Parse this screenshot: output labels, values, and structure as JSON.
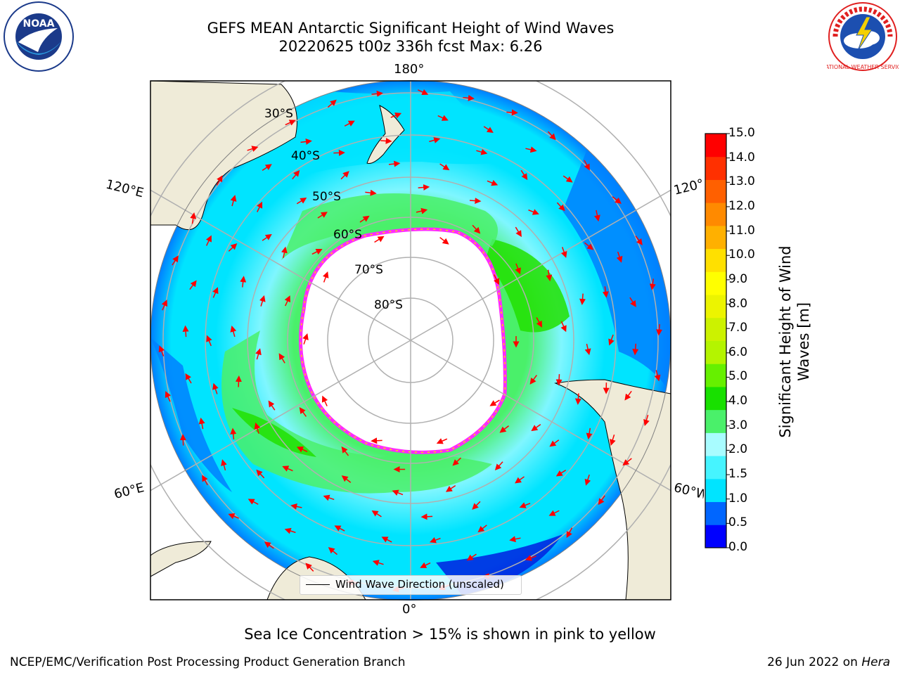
{
  "title": {
    "line1": "GEFS MEAN Antarctic Significant Height of Wind Waves",
    "line2": "20220625 t00z 336h fcst   Max: 6.26"
  },
  "map": {
    "projection": "south-polar-stereographic",
    "longitude_labels": {
      "top": "180°",
      "bottom": "0°",
      "upper_left": "120°E",
      "upper_right": "120°W",
      "lower_left": "60°E",
      "lower_right": "60°W"
    },
    "latitude_labels": [
      "30°S",
      "40°S",
      "50°S",
      "60°S",
      "70°S",
      "80°S"
    ],
    "ocean_field_colors": [
      "#00e4ff",
      "#7ff6ff",
      "#4af06a",
      "#22e000",
      "#0080ff",
      "#0020e0"
    ],
    "land_color": "#efebd8",
    "sea_ice_edge_color": "#ff2aff",
    "vector_color": "#ff0000"
  },
  "legend": {
    "label": "Wind Wave Direction (unscaled)"
  },
  "colorbar": {
    "label_line1": "Significant Height of Wind",
    "label_line2": "Waves [m]",
    "ticks": [
      "15.0",
      "14.0",
      "13.0",
      "12.0",
      "11.0",
      "10.0",
      "9.0",
      "8.0",
      "7.0",
      "6.0",
      "5.0",
      "4.0",
      "3.0",
      "2.0",
      "1.5",
      "1.0",
      "0.5",
      "0.0"
    ],
    "colors_bottom_to_top": [
      "#0000ff",
      "#0066ff",
      "#00e4ff",
      "#46f4ff",
      "#a8fcff",
      "#4af06a",
      "#18e000",
      "#66f000",
      "#b4f400",
      "#ccf200",
      "#ecf400",
      "#ffff00",
      "#ffe000",
      "#ffb000",
      "#ff8a00",
      "#ff6000",
      "#ff3000",
      "#ff0000"
    ]
  },
  "footer": {
    "caption": "Sea Ice Concentration > 15% is shown in pink to yellow",
    "credit": "NCEP/EMC/Verification Post Processing Product Generation Branch",
    "date_prefix": "26 Jun 2022 on ",
    "date_host": "Hera"
  },
  "logos": {
    "noaa_text": "NOAA",
    "nws_text": "NATIONAL WEATHER SERVICE"
  }
}
